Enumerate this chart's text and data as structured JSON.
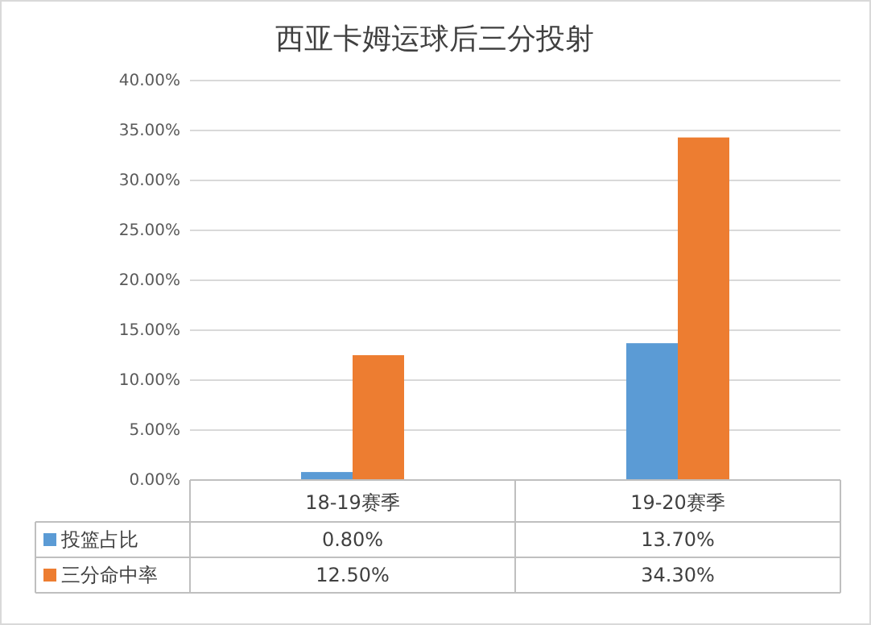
{
  "chart_data": {
    "type": "bar",
    "title": "西亚卡姆运球后三分投射",
    "categories": [
      "18-19赛季",
      "19-20赛季"
    ],
    "series": [
      {
        "name": "投篮占比",
        "color": "#5b9bd5",
        "values": [
          0.8,
          13.7
        ],
        "value_labels": [
          "0.80%",
          "13.70%"
        ]
      },
      {
        "name": "三分命中率",
        "color": "#ed7d31",
        "values": [
          12.5,
          34.3
        ],
        "value_labels": [
          "12.50%",
          "34.30%"
        ]
      }
    ],
    "ylim": [
      0,
      40
    ],
    "yticks": [
      {
        "value": 0,
        "label": "0.00%"
      },
      {
        "value": 5,
        "label": "5.00%"
      },
      {
        "value": 10,
        "label": "10.00%"
      },
      {
        "value": 15,
        "label": "15.00%"
      },
      {
        "value": 20,
        "label": "20.00%"
      },
      {
        "value": 25,
        "label": "25.00%"
      },
      {
        "value": 30,
        "label": "30.00%"
      },
      {
        "value": 35,
        "label": "35.00%"
      },
      {
        "value": 40,
        "label": "40.00%"
      }
    ],
    "grid": "y",
    "legend": "bottom left"
  }
}
